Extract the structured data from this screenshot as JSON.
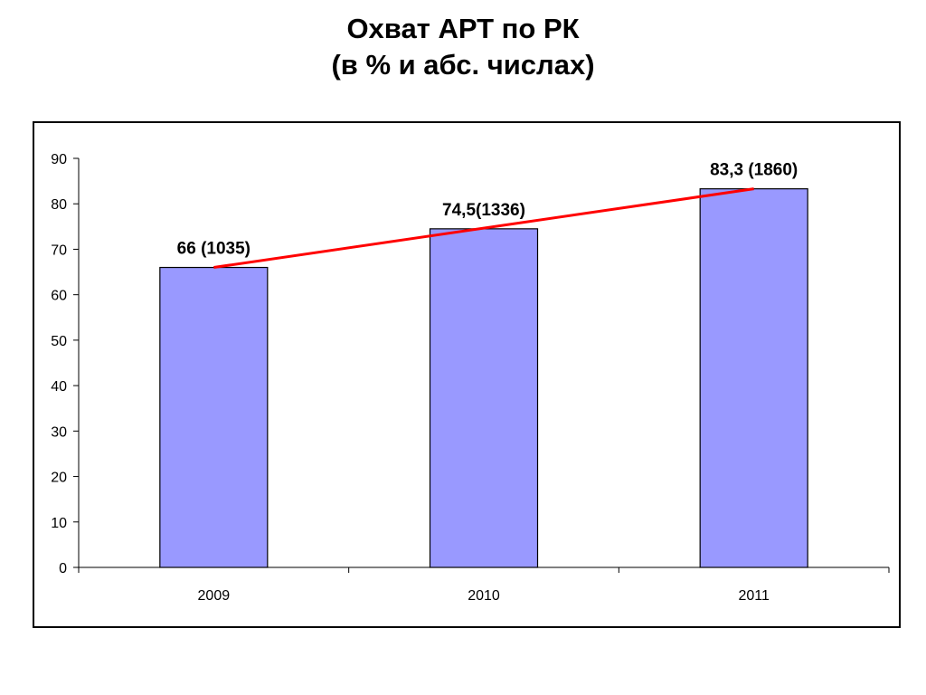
{
  "chart_data": {
    "type": "bar",
    "title": "Охват АРТ по РК",
    "subtitle": "(в % и абс. числах)",
    "categories": [
      "2009",
      "2010",
      "2011"
    ],
    "values": [
      66,
      74.5,
      83.3
    ],
    "data_labels": [
      "66 (1035)",
      "74,5(1336)",
      "83,3 (1860)"
    ],
    "ylim": [
      0,
      90
    ],
    "yticks": [
      0,
      10,
      20,
      30,
      40,
      50,
      60,
      70,
      80,
      90
    ],
    "trendline": {
      "from": 66,
      "to": 83.3,
      "color": "#ff0000"
    },
    "bar_color": "#9999ff",
    "grid": false,
    "legend": "none"
  }
}
